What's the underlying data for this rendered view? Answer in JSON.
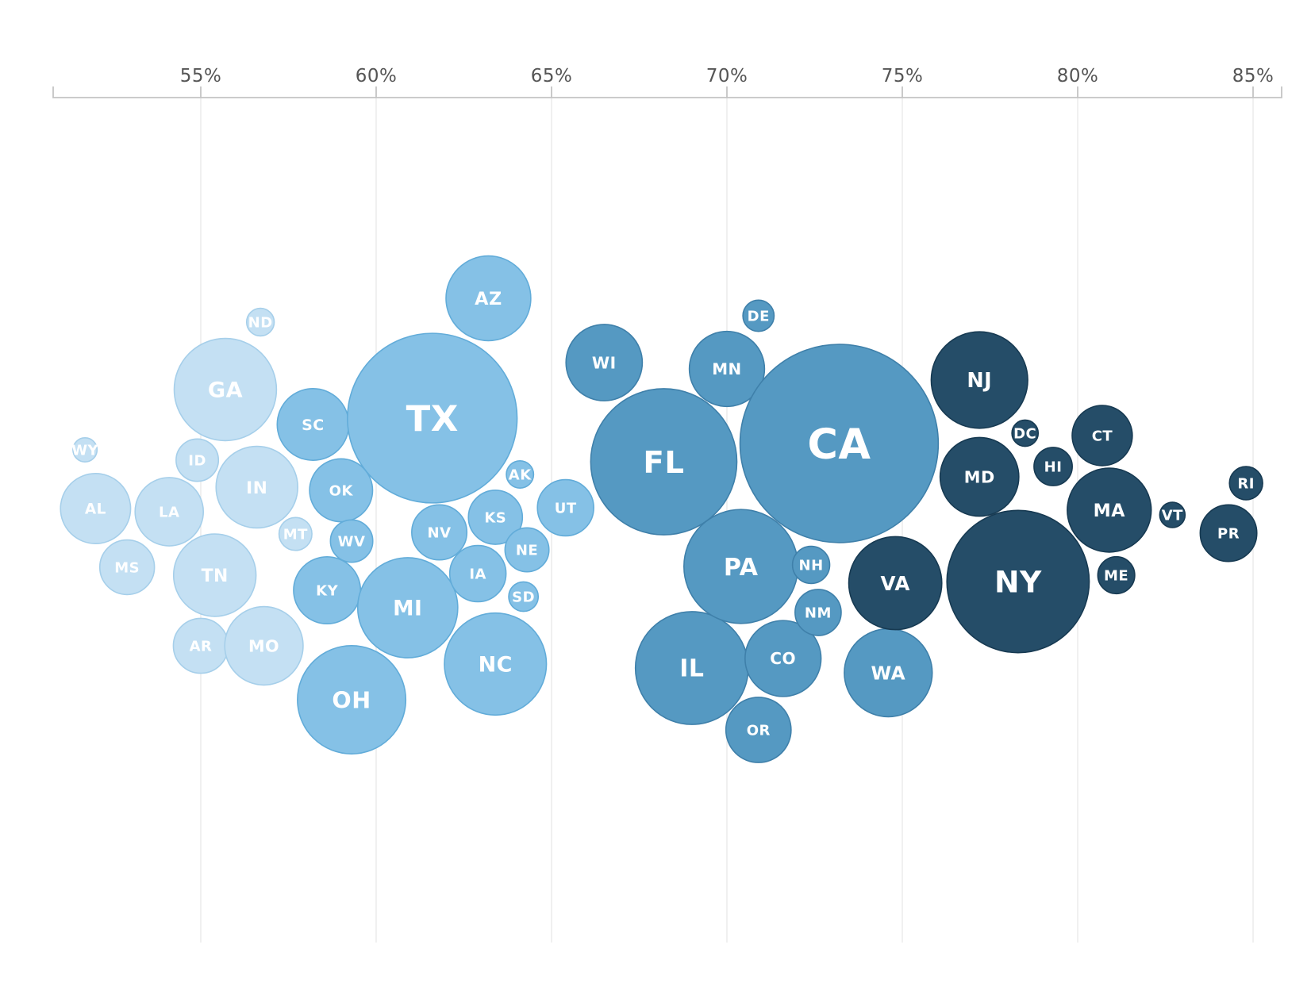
{
  "chart_data": {
    "type": "scatter",
    "title": "",
    "xlabel": "",
    "ylabel": "",
    "x_unit": "%",
    "xlim": [
      50.8,
      85.8
    ],
    "x_ticks": [
      55,
      60,
      65,
      70,
      75,
      80,
      85
    ],
    "x_tick_labels": [
      "55%",
      "60%",
      "65%",
      "70%",
      "75%",
      "80%",
      "85%"
    ],
    "grid": true,
    "legend": "none",
    "palette": {
      "light": {
        "fill": "#c4e0f3",
        "stroke": "#a6cfea"
      },
      "medium": {
        "fill": "#85c1e6",
        "stroke": "#62acd9"
      },
      "dark": {
        "fill": "#5599c2",
        "stroke": "#3f80aa"
      },
      "darkest": {
        "fill": "#254d68",
        "stroke": "#173a52"
      }
    },
    "points": [
      {
        "label": "WY",
        "x": 51.7,
        "size": 0.58,
        "group": "light"
      },
      {
        "label": "AL",
        "x": 52.0,
        "size": 4.9,
        "group": "light"
      },
      {
        "label": "MS",
        "x": 52.9,
        "size": 2.98,
        "group": "light"
      },
      {
        "label": "LA",
        "x": 54.1,
        "size": 4.65,
        "group": "light"
      },
      {
        "label": "ND",
        "x": 56.7,
        "size": 0.76,
        "group": "light"
      },
      {
        "label": "GA",
        "x": 55.7,
        "size": 10.43,
        "group": "light"
      },
      {
        "label": "ID",
        "x": 54.9,
        "size": 1.79,
        "group": "light"
      },
      {
        "label": "IN",
        "x": 56.6,
        "size": 6.66,
        "group": "light"
      },
      {
        "label": "TN",
        "x": 55.4,
        "size": 6.78,
        "group": "light"
      },
      {
        "label": "AR",
        "x": 55.0,
        "size": 3.0,
        "group": "light"
      },
      {
        "label": "MO",
        "x": 56.8,
        "size": 6.13,
        "group": "light"
      },
      {
        "label": "MT",
        "x": 57.7,
        "size": 1.08,
        "group": "light"
      },
      {
        "label": "SC",
        "x": 58.2,
        "size": 5.12,
        "group": "medium"
      },
      {
        "label": "OK",
        "x": 59.0,
        "size": 3.96,
        "group": "medium"
      },
      {
        "label": "WV",
        "x": 59.3,
        "size": 1.79,
        "group": "medium"
      },
      {
        "label": "KY",
        "x": 58.6,
        "size": 4.47,
        "group": "medium"
      },
      {
        "label": "OH",
        "x": 59.3,
        "size": 11.69,
        "group": "medium"
      },
      {
        "label": "TX",
        "x": 61.6,
        "size": 28.7,
        "group": "medium"
      },
      {
        "label": "AZ",
        "x": 63.2,
        "size": 7.17,
        "group": "medium"
      },
      {
        "label": "MI",
        "x": 60.9,
        "size": 9.99,
        "group": "medium"
      },
      {
        "label": "NV",
        "x": 61.8,
        "size": 3.03,
        "group": "medium"
      },
      {
        "label": "KS",
        "x": 63.4,
        "size": 2.91,
        "group": "medium"
      },
      {
        "label": "AK",
        "x": 64.1,
        "size": 0.74,
        "group": "medium"
      },
      {
        "label": "IA",
        "x": 62.9,
        "size": 3.16,
        "group": "medium"
      },
      {
        "label": "NE",
        "x": 64.3,
        "size": 1.93,
        "group": "medium"
      },
      {
        "label": "SD",
        "x": 64.2,
        "size": 0.87,
        "group": "medium"
      },
      {
        "label": "UT",
        "x": 65.4,
        "size": 3.16,
        "group": "medium"
      },
      {
        "label": "NC",
        "x": 63.4,
        "size": 10.38,
        "group": "medium"
      },
      {
        "label": "WI",
        "x": 66.5,
        "size": 5.81,
        "group": "dark"
      },
      {
        "label": "FL",
        "x": 68.2,
        "size": 21.3,
        "group": "dark"
      },
      {
        "label": "MN",
        "x": 70.0,
        "size": 5.64,
        "group": "dark"
      },
      {
        "label": "DE",
        "x": 70.9,
        "size": 0.97,
        "group": "dark"
      },
      {
        "label": "IL",
        "x": 69.0,
        "size": 12.7,
        "group": "dark"
      },
      {
        "label": "PA",
        "x": 70.4,
        "size": 12.97,
        "group": "dark"
      },
      {
        "label": "OR",
        "x": 70.9,
        "size": 4.24,
        "group": "dark"
      },
      {
        "label": "CO",
        "x": 71.6,
        "size": 5.76,
        "group": "dark"
      },
      {
        "label": "CA",
        "x": 73.2,
        "size": 39.2,
        "group": "dark"
      },
      {
        "label": "NH",
        "x": 72.4,
        "size": 1.38,
        "group": "dark"
      },
      {
        "label": "NM",
        "x": 72.6,
        "size": 2.12,
        "group": "dark"
      },
      {
        "label": "WA",
        "x": 74.6,
        "size": 7.71,
        "group": "dark"
      },
      {
        "label": "VA",
        "x": 74.8,
        "size": 8.63,
        "group": "darkest"
      },
      {
        "label": "NJ",
        "x": 77.2,
        "size": 9.29,
        "group": "darkest"
      },
      {
        "label": "MD",
        "x": 77.2,
        "size": 6.18,
        "group": "darkest"
      },
      {
        "label": "DC",
        "x": 78.5,
        "size": 0.69,
        "group": "darkest"
      },
      {
        "label": "HI",
        "x": 79.3,
        "size": 1.46,
        "group": "darkest"
      },
      {
        "label": "CT",
        "x": 80.7,
        "size": 3.61,
        "group": "darkest"
      },
      {
        "label": "MA",
        "x": 80.9,
        "size": 7.03,
        "group": "darkest"
      },
      {
        "label": "ME",
        "x": 81.1,
        "size": 1.36,
        "group": "darkest"
      },
      {
        "label": "NY",
        "x": 78.3,
        "size": 20.2,
        "group": "darkest"
      },
      {
        "label": "VT",
        "x": 82.7,
        "size": 0.64,
        "group": "darkest"
      },
      {
        "label": "RI",
        "x": 84.8,
        "size": 1.1,
        "group": "darkest"
      },
      {
        "label": "PR",
        "x": 84.3,
        "size": 3.2,
        "group": "darkest"
      }
    ]
  }
}
